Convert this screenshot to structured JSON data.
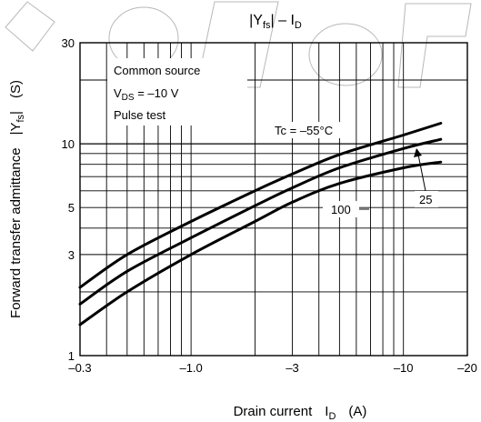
{
  "chart_data": {
    "type": "line",
    "title_main": "|Y",
    "title_sub": "fs",
    "title_tail": "| – I",
    "title_sub2": "D",
    "xlabel_text": "Drain current",
    "xlabel_symbol": "I",
    "xlabel_sub": "D",
    "xlabel_unit": "(A)",
    "ylabel_text": "Forward transfer admittance",
    "ylabel_symbol": "|Y",
    "ylabel_sub": "fs",
    "ylabel_tail": "|",
    "ylabel_unit": "(S)",
    "x_scale": "log",
    "y_scale": "log",
    "xlim": [
      -0.3,
      -20
    ],
    "ylim": [
      1,
      30
    ],
    "x_ticks": [
      {
        "value": -0.3,
        "label": "–0.3"
      },
      {
        "value": -1.0,
        "label": "–1.0"
      },
      {
        "value": -3,
        "label": "–3"
      },
      {
        "value": -10,
        "label": "–10"
      },
      {
        "value": -20,
        "label": "–20"
      }
    ],
    "y_ticks": [
      {
        "value": 1,
        "label": "1"
      },
      {
        "value": 3,
        "label": "3"
      },
      {
        "value": 5,
        "label": "5"
      },
      {
        "value": 10,
        "label": "10"
      },
      {
        "value": 30,
        "label": "30"
      }
    ],
    "conditions": {
      "line1": "Common source",
      "line2_main": "V",
      "line2_sub": "DS",
      "line2_tail": " = –10 V",
      "line3": "Pulse test"
    },
    "grid": true,
    "series": [
      {
        "name": "Tc = –55°C",
        "x": [
          -0.3,
          -0.5,
          -1.0,
          -2,
          -3,
          -5,
          -10,
          -15
        ],
        "y": [
          2.1,
          3.0,
          4.3,
          6.0,
          7.2,
          8.9,
          11.0,
          12.5
        ]
      },
      {
        "name": "25",
        "x": [
          -0.3,
          -0.5,
          -1.0,
          -2,
          -3,
          -5,
          -10,
          -15
        ],
        "y": [
          1.75,
          2.5,
          3.6,
          5.1,
          6.2,
          7.7,
          9.5,
          10.5
        ]
      },
      {
        "name": "100",
        "x": [
          -0.3,
          -0.5,
          -1.0,
          -2,
          -3,
          -5,
          -10,
          -15
        ],
        "y": [
          1.4,
          2.0,
          3.0,
          4.3,
          5.3,
          6.5,
          7.7,
          8.2
        ]
      }
    ],
    "labels": {
      "s55": "Tc = –55°C",
      "s25": "25",
      "s100": "100"
    }
  }
}
